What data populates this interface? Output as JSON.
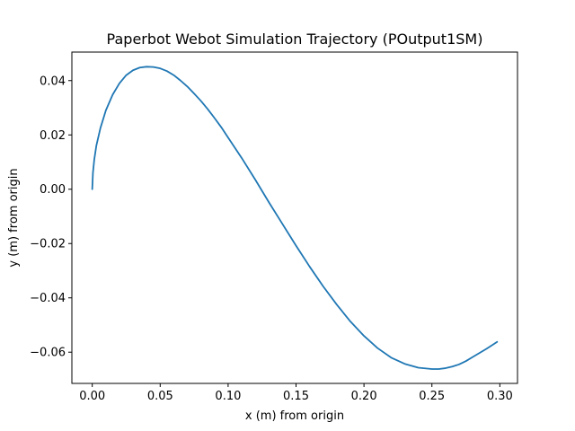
{
  "chart_data": {
    "type": "line",
    "title": "Paperbot Webot Simulation Trajectory (POutput1SM)",
    "xlabel": "x (m) from origin",
    "ylabel": "y (m) from origin",
    "xlim": [
      -0.015,
      0.313
    ],
    "ylim": [
      -0.0715,
      0.0505
    ],
    "grid": false,
    "xticks": [
      {
        "value": 0.0,
        "label": "0.00"
      },
      {
        "value": 0.05,
        "label": "0.05"
      },
      {
        "value": 0.1,
        "label": "0.10"
      },
      {
        "value": 0.15,
        "label": "0.15"
      },
      {
        "value": 0.2,
        "label": "0.20"
      },
      {
        "value": 0.25,
        "label": "0.25"
      },
      {
        "value": 0.3,
        "label": "0.30"
      }
    ],
    "yticks": [
      {
        "value": 0.04,
        "label": "0.04"
      },
      {
        "value": 0.02,
        "label": "0.02"
      },
      {
        "value": 0.0,
        "label": "0.00"
      },
      {
        "value": -0.02,
        "label": "−0.02"
      },
      {
        "value": -0.04,
        "label": "−0.04"
      },
      {
        "value": -0.06,
        "label": "−0.06"
      }
    ],
    "series": [
      {
        "color": "#1f77b4",
        "x": [
          0.0,
          0.0005,
          0.0015,
          0.003,
          0.006,
          0.01,
          0.015,
          0.02,
          0.025,
          0.03,
          0.035,
          0.04,
          0.045,
          0.05,
          0.055,
          0.06,
          0.065,
          0.07,
          0.075,
          0.08,
          0.085,
          0.09,
          0.095,
          0.1,
          0.11,
          0.12,
          0.13,
          0.14,
          0.15,
          0.16,
          0.17,
          0.18,
          0.19,
          0.2,
          0.21,
          0.22,
          0.23,
          0.24,
          0.25,
          0.255,
          0.26,
          0.265,
          0.27,
          0.275,
          0.28,
          0.285,
          0.29,
          0.295,
          0.298
        ],
        "y": [
          0.0,
          0.006,
          0.011,
          0.016,
          0.0225,
          0.029,
          0.0348,
          0.039,
          0.042,
          0.0438,
          0.0448,
          0.0451,
          0.045,
          0.0445,
          0.0435,
          0.042,
          0.04,
          0.0378,
          0.0352,
          0.0325,
          0.0295,
          0.0262,
          0.0228,
          0.019,
          0.0115,
          0.0035,
          -0.0048,
          -0.0128,
          -0.0208,
          -0.0285,
          -0.0358,
          -0.0425,
          -0.0487,
          -0.054,
          -0.0585,
          -0.062,
          -0.0643,
          -0.0657,
          -0.0662,
          -0.0662,
          -0.0659,
          -0.0653,
          -0.0645,
          -0.0633,
          -0.0618,
          -0.0603,
          -0.0588,
          -0.0572,
          -0.0562
        ]
      }
    ]
  }
}
